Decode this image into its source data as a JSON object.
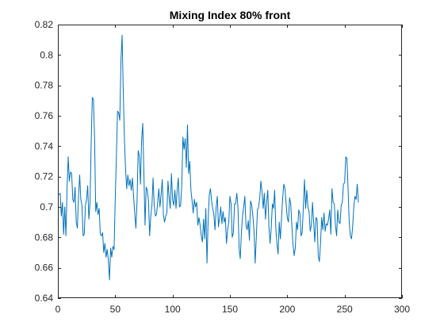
{
  "chart_data": {
    "type": "line",
    "title": "Mixing Index 80% front",
    "xlabel": "",
    "ylabel": "",
    "xlim": [
      0,
      300
    ],
    "ylim": [
      0.64,
      0.82
    ],
    "xticks": [
      0,
      50,
      100,
      150,
      200,
      250,
      300
    ],
    "yticks": [
      0.64,
      0.66,
      0.68,
      0.7,
      0.72,
      0.74,
      0.76,
      0.78,
      0.8,
      0.82
    ],
    "xtick_labels": [
      "0",
      "50",
      "100",
      "150",
      "200",
      "250",
      "300"
    ],
    "ytick_labels": [
      "0.64",
      "0.66",
      "0.68",
      "0.7",
      "0.72",
      "0.74",
      "0.76",
      "0.78",
      "0.8",
      "0.82"
    ],
    "grid": false,
    "legend": "none",
    "line_color": "#0072BD",
    "series": [
      {
        "values": [
          0.708,
          0.709,
          0.694,
          0.703,
          0.682,
          0.7,
          0.681,
          0.712,
          0.733,
          0.717,
          0.723,
          0.722,
          0.705,
          0.703,
          0.713,
          0.69,
          0.686,
          0.707,
          0.721,
          0.705,
          0.701,
          0.681,
          0.682,
          0.701,
          0.705,
          0.714,
          0.692,
          0.702,
          0.741,
          0.772,
          0.771,
          0.745,
          0.697,
          0.703,
          0.695,
          0.699,
          0.682,
          0.681,
          0.683,
          0.67,
          0.676,
          0.667,
          0.672,
          0.665,
          0.652,
          0.673,
          0.667,
          0.674,
          0.672,
          0.705,
          0.733,
          0.763,
          0.762,
          0.757,
          0.797,
          0.813,
          0.776,
          0.745,
          0.725,
          0.712,
          0.721,
          0.714,
          0.718,
          0.711,
          0.719,
          0.707,
          0.696,
          0.686,
          0.703,
          0.737,
          0.734,
          0.715,
          0.744,
          0.755,
          0.722,
          0.688,
          0.713,
          0.711,
          0.704,
          0.681,
          0.694,
          0.701,
          0.719,
          0.701,
          0.694,
          0.695,
          0.703,
          0.712,
          0.7,
          0.708,
          0.718,
          0.695,
          0.69,
          0.694,
          0.696,
          0.717,
          0.706,
          0.699,
          0.722,
          0.705,
          0.701,
          0.711,
          0.699,
          0.711,
          0.719,
          0.7,
          0.701,
          0.714,
          0.746,
          0.738,
          0.745,
          0.726,
          0.754,
          0.722,
          0.73,
          0.711,
          0.704,
          0.696,
          0.705,
          0.7,
          0.703,
          0.688,
          0.693,
          0.688,
          0.681,
          0.677,
          0.692,
          0.679,
          0.699,
          0.663,
          0.691,
          0.708,
          0.712,
          0.704,
          0.699,
          0.695,
          0.685,
          0.7,
          0.707,
          0.687,
          0.693,
          0.7,
          0.689,
          0.697,
          0.69,
          0.693,
          0.676,
          0.685,
          0.69,
          0.707,
          0.702,
          0.68,
          0.683,
          0.702,
          0.702,
          0.709,
          0.7,
          0.673,
          0.666,
          0.683,
          0.694,
          0.7,
          0.707,
          0.688,
          0.685,
          0.691,
          0.678,
          0.704,
          0.701,
          0.694,
          0.684,
          0.663,
          0.68,
          0.698,
          0.7,
          0.706,
          0.717,
          0.71,
          0.699,
          0.709,
          0.692,
          0.703,
          0.711,
          0.687,
          0.676,
          0.686,
          0.702,
          0.699,
          0.711,
          0.686,
          0.676,
          0.669,
          0.69,
          0.679,
          0.693,
          0.706,
          0.715,
          0.712,
          0.702,
          0.693,
          0.69,
          0.706,
          0.702,
          0.688,
          0.675,
          0.668,
          0.673,
          0.69,
          0.685,
          0.698,
          0.696,
          0.681,
          0.683,
          0.7,
          0.718,
          0.699,
          0.711,
          0.7,
          0.697,
          0.684,
          0.688,
          0.703,
          0.69,
          0.677,
          0.693,
          0.692,
          0.668,
          0.664,
          0.676,
          0.693,
          0.685,
          0.696,
          0.684,
          0.689,
          0.688,
          0.692,
          0.698,
          0.682,
          0.712,
          0.703,
          0.702,
          0.688,
          0.681,
          0.698,
          0.69,
          0.689,
          0.701,
          0.703,
          0.715,
          0.716,
          0.733,
          0.732,
          0.712,
          0.69,
          0.681,
          0.679,
          0.687,
          0.7,
          0.707,
          0.705,
          0.715,
          0.703
        ]
      }
    ]
  }
}
